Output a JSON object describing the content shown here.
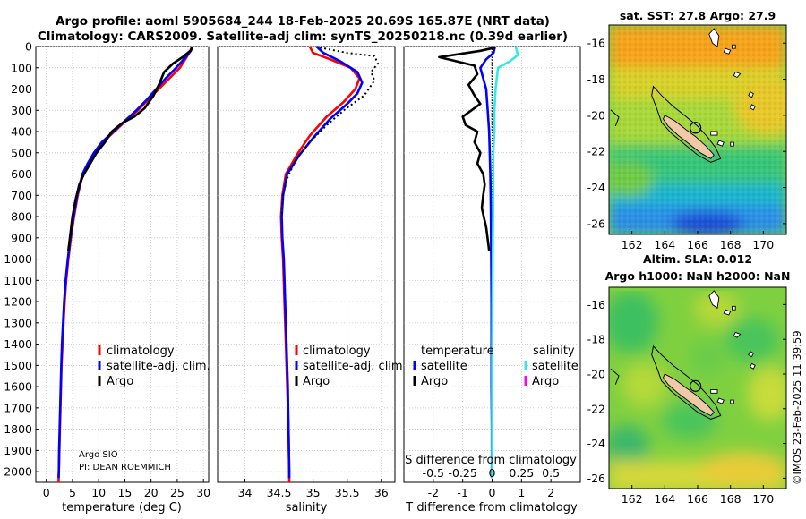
{
  "header": {
    "title_line1": "Argo profile: aoml 5905684_244 18-Feb-2025 20.69S 165.87E (NRT data)",
    "title_line2": "Climatology: CARS2009. Satellite-adj clim: synTS_20250218.nc (0.39d earlier)"
  },
  "credit": {
    "org": "Argo SIO",
    "pi": "PI: DEAN ROEMMICH",
    "imos": "©IMOS 23-Feb-2025 11:39:59"
  },
  "colors": {
    "climatology": "#ff0000",
    "satellite_adj": "#0000ff",
    "argo": "#000000",
    "salinity_sat": "#33e8e8",
    "salinity_argo": "#ff00ff"
  },
  "chart_data": [
    {
      "id": "temperature",
      "type": "line",
      "xlabel": "temperature (deg C)",
      "ylabel": "",
      "xlim": [
        -2,
        31
      ],
      "ylim": [
        2050,
        0
      ],
      "xticks": [
        0,
        5,
        10,
        15,
        20,
        25,
        30
      ],
      "yticks": [
        0,
        100,
        200,
        300,
        400,
        500,
        600,
        700,
        800,
        900,
        1000,
        1100,
        1200,
        1300,
        1400,
        1500,
        1600,
        1700,
        1800,
        1900,
        2000
      ],
      "legend": [
        "climatology",
        "satellite-adj. clim.",
        "Argo"
      ],
      "series": [
        {
          "name": "climatology",
          "color": "#ff0000",
          "dash": "",
          "points": [
            [
              27.8,
              0
            ],
            [
              27.5,
              20
            ],
            [
              26.8,
              50
            ],
            [
              25.5,
              100
            ],
            [
              23.5,
              150
            ],
            [
              21.5,
              200
            ],
            [
              19.5,
              250
            ],
            [
              17.5,
              300
            ],
            [
              15.2,
              350
            ],
            [
              13.0,
              400
            ],
            [
              10.8,
              450
            ],
            [
              9.2,
              500
            ],
            [
              8.0,
              550
            ],
            [
              7.0,
              600
            ],
            [
              6.0,
              700
            ],
            [
              5.3,
              800
            ],
            [
              4.7,
              900
            ],
            [
              4.2,
              1000
            ],
            [
              3.8,
              1100
            ],
            [
              3.5,
              1200
            ],
            [
              3.3,
              1300
            ],
            [
              3.1,
              1400
            ],
            [
              2.9,
              1500
            ],
            [
              2.8,
              1600
            ],
            [
              2.7,
              1700
            ],
            [
              2.6,
              1800
            ],
            [
              2.5,
              1900
            ],
            [
              2.4,
              2000
            ],
            [
              2.35,
              2050
            ]
          ]
        },
        {
          "name": "satellite-adj. clim.",
          "color": "#0000ff",
          "dash": "",
          "points": [
            [
              27.9,
              0
            ],
            [
              27.6,
              20
            ],
            [
              26.6,
              50
            ],
            [
              24.8,
              100
            ],
            [
              22.8,
              150
            ],
            [
              21.0,
              200
            ],
            [
              19.2,
              250
            ],
            [
              17.2,
              300
            ],
            [
              15.0,
              350
            ],
            [
              12.8,
              400
            ],
            [
              10.6,
              450
            ],
            [
              9.1,
              500
            ],
            [
              7.9,
              550
            ],
            [
              6.9,
              600
            ],
            [
              5.9,
              700
            ],
            [
              5.2,
              800
            ],
            [
              4.6,
              900
            ],
            [
              4.1,
              1000
            ],
            [
              3.7,
              1100
            ],
            [
              3.4,
              1200
            ],
            [
              3.2,
              1300
            ],
            [
              3.0,
              1400
            ],
            [
              2.85,
              1500
            ],
            [
              2.75,
              1600
            ],
            [
              2.65,
              1700
            ],
            [
              2.55,
              1800
            ],
            [
              2.45,
              1900
            ],
            [
              2.4,
              2000
            ],
            [
              2.35,
              2030
            ]
          ]
        },
        {
          "name": "Argo",
          "color": "#000000",
          "dash": "",
          "points": [
            [
              27.9,
              5
            ],
            [
              27.5,
              20
            ],
            [
              26.0,
              50
            ],
            [
              24.2,
              80
            ],
            [
              22.5,
              120
            ],
            [
              21.5,
              180
            ],
            [
              20.5,
              230
            ],
            [
              18.8,
              290
            ],
            [
              16.8,
              330
            ],
            [
              14.5,
              360
            ],
            [
              12.5,
              400
            ],
            [
              11.2,
              450
            ],
            [
              9.6,
              500
            ],
            [
              8.4,
              550
            ],
            [
              7.2,
              600
            ],
            [
              6.3,
              650
            ],
            [
              5.6,
              720
            ],
            [
              5.0,
              800
            ],
            [
              4.6,
              880
            ],
            [
              4.2,
              960
            ]
          ]
        }
      ]
    },
    {
      "id": "salinity",
      "type": "line",
      "xlabel": "salinity",
      "ylabel": "",
      "xlim": [
        33.6,
        36.2
      ],
      "ylim": [
        2050,
        0
      ],
      "xticks": [
        34,
        34.5,
        35,
        35.5,
        36
      ],
      "legend": [
        "climatology",
        "satellite-adj. clim.",
        "Argo"
      ],
      "series": [
        {
          "name": "climatology",
          "color": "#ff0000",
          "dash": "",
          "points": [
            [
              34.95,
              0
            ],
            [
              35.0,
              30
            ],
            [
              35.25,
              60
            ],
            [
              35.55,
              100
            ],
            [
              35.68,
              150
            ],
            [
              35.62,
              200
            ],
            [
              35.45,
              260
            ],
            [
              35.2,
              330
            ],
            [
              34.95,
              420
            ],
            [
              34.78,
              500
            ],
            [
              34.6,
              600
            ],
            [
              34.55,
              700
            ],
            [
              34.53,
              800
            ],
            [
              34.54,
              900
            ],
            [
              34.56,
              1000
            ],
            [
              34.58,
              1200
            ],
            [
              34.6,
              1400
            ],
            [
              34.62,
              1600
            ],
            [
              34.64,
              1800
            ],
            [
              34.65,
              2000
            ],
            [
              34.65,
              2050
            ]
          ]
        },
        {
          "name": "satellite-adj. clim.",
          "color": "#0000ff",
          "dash": "",
          "points": [
            [
              35.05,
              0
            ],
            [
              35.15,
              30
            ],
            [
              35.4,
              70
            ],
            [
              35.65,
              120
            ],
            [
              35.72,
              170
            ],
            [
              35.65,
              220
            ],
            [
              35.5,
              270
            ],
            [
              35.25,
              340
            ],
            [
              35.0,
              430
            ],
            [
              34.8,
              510
            ],
            [
              34.62,
              600
            ],
            [
              34.56,
              700
            ],
            [
              34.54,
              800
            ],
            [
              34.55,
              900
            ],
            [
              34.57,
              1000
            ],
            [
              34.59,
              1200
            ],
            [
              34.61,
              1400
            ],
            [
              34.63,
              1600
            ],
            [
              34.64,
              1800
            ],
            [
              34.65,
              2000
            ],
            [
              34.65,
              2030
            ]
          ]
        },
        {
          "name": "Argo",
          "color": "#000000",
          "dash": "2,3",
          "points": [
            [
              35.1,
              5
            ],
            [
              35.5,
              30
            ],
            [
              35.9,
              45
            ],
            [
              35.95,
              80
            ],
            [
              35.85,
              120
            ],
            [
              35.9,
              160
            ],
            [
              35.75,
              230
            ],
            [
              35.45,
              300
            ],
            [
              35.2,
              370
            ],
            [
              34.95,
              450
            ],
            [
              34.75,
              530
            ],
            [
              34.62,
              620
            ],
            [
              34.56,
              700
            ],
            [
              34.54,
              800
            ]
          ]
        }
      ]
    },
    {
      "id": "difference",
      "type": "line",
      "xlabel": "T difference from climatology",
      "xlabel2": "S difference from climatology",
      "ylabel": "",
      "xlim": [
        -3,
        3
      ],
      "ylim": [
        2050,
        0
      ],
      "xticks": [
        -2,
        -1,
        0,
        1,
        2
      ],
      "xticks2": [
        {
          "value": -0.5,
          "label": "-0.5"
        },
        {
          "value": -0.25,
          "label": "-0.25"
        },
        {
          "value": 0,
          "label": "0"
        },
        {
          "value": 0.25,
          "label": "0.25"
        },
        {
          "value": 0.5,
          "label": "0.5"
        }
      ],
      "s_scale": 4,
      "legend_title_t": "temperature",
      "legend_title_s": "salinity",
      "legend": [
        "satellite",
        "Argo",
        "satellite",
        "Argo"
      ],
      "series": [
        {
          "name": "T satellite",
          "color": "#0000ff",
          "dash": "",
          "axis": "T",
          "points": [
            [
              0.1,
              0
            ],
            [
              0.05,
              30
            ],
            [
              -0.2,
              60
            ],
            [
              -0.4,
              100
            ],
            [
              -0.3,
              150
            ],
            [
              -0.2,
              200
            ],
            [
              -0.15,
              300
            ],
            [
              -0.1,
              400
            ],
            [
              -0.08,
              500
            ],
            [
              -0.06,
              600
            ],
            [
              -0.05,
              700
            ],
            [
              -0.04,
              800
            ],
            [
              -0.03,
              1000
            ],
            [
              -0.02,
              1200
            ],
            [
              -0.02,
              1400
            ],
            [
              -0.02,
              1600
            ],
            [
              -0.01,
              1800
            ],
            [
              -0.01,
              2000
            ],
            [
              -0.01,
              2030
            ]
          ]
        },
        {
          "name": "T Argo",
          "color": "#000000",
          "dash": "",
          "axis": "T",
          "points": [
            [
              0.1,
              5
            ],
            [
              -0.4,
              20
            ],
            [
              -1.8,
              50
            ],
            [
              -1.2,
              70
            ],
            [
              -0.6,
              90
            ],
            [
              -0.5,
              130
            ],
            [
              -0.8,
              180
            ],
            [
              -0.6,
              230
            ],
            [
              -0.4,
              270
            ],
            [
              -1.0,
              330
            ],
            [
              -0.9,
              370
            ],
            [
              -0.5,
              400
            ],
            [
              -0.6,
              450
            ],
            [
              -0.4,
              500
            ],
            [
              -0.5,
              550
            ],
            [
              -0.3,
              600
            ],
            [
              -0.25,
              650
            ],
            [
              -0.3,
              700
            ],
            [
              -0.35,
              760
            ],
            [
              -0.2,
              850
            ],
            [
              -0.1,
              960
            ]
          ]
        },
        {
          "name": "S satellite",
          "color": "#33e8e8",
          "dash": "",
          "axis": "S",
          "points": [
            [
              0.2,
              0
            ],
            [
              0.22,
              40
            ],
            [
              0.15,
              70
            ],
            [
              0.05,
              100
            ],
            [
              0.03,
              200
            ],
            [
              0.02,
              300
            ],
            [
              0.02,
              400
            ],
            [
              0.01,
              500
            ],
            [
              0.01,
              700
            ],
            [
              0.005,
              1000
            ],
            [
              0.0,
              1500
            ],
            [
              0.0,
              2000
            ],
            [
              0.0,
              2030
            ]
          ]
        },
        {
          "name": "S Argo",
          "color": "#000000",
          "dash": "1,2",
          "axis": "S",
          "points": [
            [
              0.0,
              10
            ],
            [
              0.0,
              200
            ],
            [
              0.0,
              400
            ]
          ]
        }
      ]
    },
    {
      "id": "sst_map",
      "type": "heatmap",
      "title": "sat. SST: 27.8 Argo: 27.9",
      "xticks": [
        162,
        164,
        166,
        168,
        170
      ],
      "yticks": [
        -16,
        -18,
        -20,
        -22,
        -24,
        -26
      ],
      "xlim": [
        160.6,
        171.4
      ],
      "ylim": [
        -26.6,
        -15.0
      ],
      "marker": [
        165.87,
        -20.69
      ]
    },
    {
      "id": "sla_map",
      "type": "heatmap",
      "title_line1": "Altim. SLA: 0.012",
      "title_line2": "Argo h1000: NaN h2000: NaN",
      "xticks": [
        162,
        164,
        166,
        168,
        170
      ],
      "yticks": [
        -16,
        -18,
        -20,
        -22,
        -24,
        -26
      ],
      "xlim": [
        160.6,
        171.4
      ],
      "ylim": [
        -26.6,
        -15.0
      ],
      "marker": [
        165.87,
        -20.69
      ]
    }
  ]
}
